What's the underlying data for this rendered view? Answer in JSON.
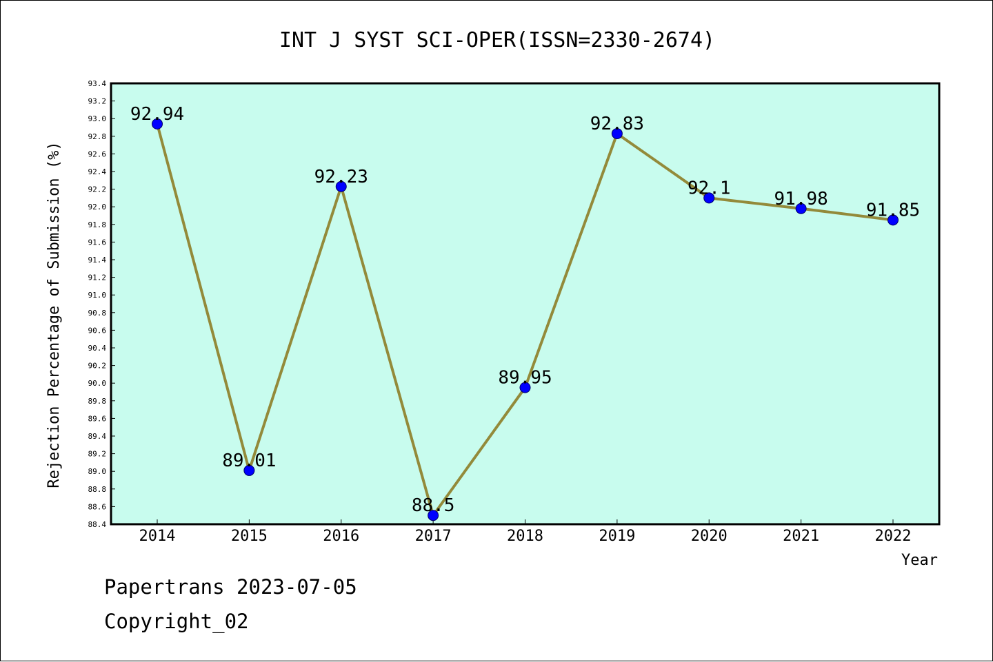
{
  "chart_data": {
    "type": "line",
    "title": "INT J SYST SCI-OPER(ISSN=2330-2674)",
    "xlabel": "Year",
    "ylabel": "Rejection Percentage of Submission (%)",
    "ylim": [
      88.4,
      93.4
    ],
    "ytick_step": 0.2,
    "categories": [
      "2014",
      "2015",
      "2016",
      "2017",
      "2018",
      "2019",
      "2020",
      "2021",
      "2022"
    ],
    "series": [
      {
        "values": [
          92.94,
          89.01,
          92.23,
          88.5,
          89.95,
          92.83,
          92.1,
          91.98,
          91.85
        ],
        "labels": [
          "92.94",
          "89.01",
          "92.23",
          "88.5",
          "89.95",
          "92.83",
          "92.1",
          "91.98",
          "91.85"
        ]
      }
    ],
    "grid": false,
    "colors": {
      "plot_background": "#c8fcee",
      "line": "#938a3a",
      "marker": "#0000ff"
    }
  },
  "footer": {
    "line1": "Papertrans 2023-07-05",
    "line2": "Copyright_02"
  }
}
